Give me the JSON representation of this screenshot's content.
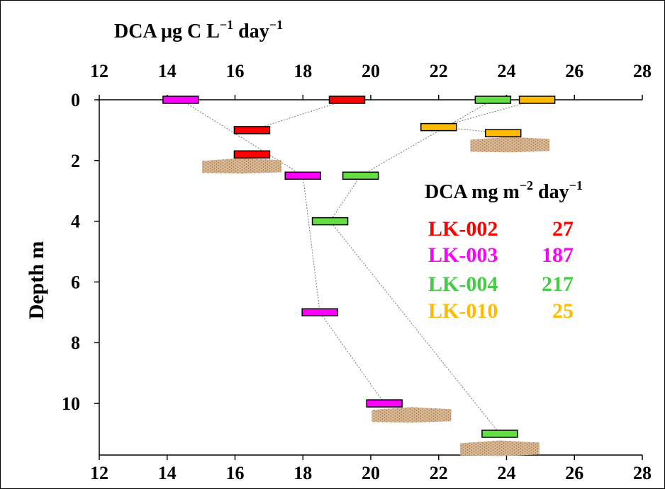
{
  "chart_data": {
    "type": "scatter",
    "x_axis_title_prefix": "DCA  μg C L",
    "x_axis_title_exp1": "−1",
    "x_axis_title_mid": " day",
    "x_axis_title_exp2": "−1",
    "y_axis_title": "Depth m",
    "x_ticks": [
      "12",
      "14",
      "16",
      "18",
      "20",
      "22",
      "24",
      "26",
      "28"
    ],
    "y_ticks": [
      "0",
      "2",
      "4",
      "6",
      "8",
      "10"
    ],
    "xlim": [
      12,
      28
    ],
    "ylim": [
      0,
      11.7
    ],
    "y_reversed": true,
    "legend": {
      "title_prefix": "DCA  mg m",
      "title_exp1": "−2",
      "title_mid": " day",
      "title_exp2": "−1",
      "placement": "right",
      "entries": [
        {
          "name": "LK-002",
          "value": "27"
        },
        {
          "name": "LK-003",
          "value": "187"
        },
        {
          "name": "LK-004",
          "value": "217"
        },
        {
          "name": "LK-010",
          "value": "25"
        }
      ]
    },
    "series": [
      {
        "name": "LK-002",
        "color": "#ff0000",
        "connected_points": [
          [
            19.3,
            0
          ],
          [
            16.5,
            1.0
          ]
        ],
        "points": [
          [
            19.3,
            0
          ],
          [
            16.5,
            1.0
          ],
          [
            16.5,
            1.8
          ]
        ]
      },
      {
        "name": "LK-003",
        "color": "#ff00ff",
        "connected_points": [
          [
            14.4,
            0
          ],
          [
            18.0,
            2.5
          ],
          [
            18.5,
            7.0
          ],
          [
            20.4,
            10.0
          ]
        ],
        "points": [
          [
            14.4,
            0
          ],
          [
            18.0,
            2.5
          ],
          [
            18.5,
            7.0
          ],
          [
            20.4,
            10.0
          ]
        ]
      },
      {
        "name": "LK-004",
        "color": "#66dd44",
        "connected_points": [
          [
            23.6,
            0
          ],
          [
            19.7,
            2.5
          ],
          [
            18.8,
            4.0
          ],
          [
            23.8,
            11.0
          ]
        ],
        "points": [
          [
            23.6,
            0
          ],
          [
            19.7,
            2.5
          ],
          [
            18.8,
            4.0
          ],
          [
            23.8,
            11.0
          ]
        ]
      },
      {
        "name": "LK-010",
        "color": "#ffbb00",
        "connected_points": [
          [
            24.9,
            0
          ],
          [
            22.0,
            0.9
          ],
          [
            23.9,
            1.1
          ]
        ],
        "points": [
          [
            24.9,
            0
          ],
          [
            22.0,
            0.9
          ],
          [
            23.9,
            1.1
          ]
        ]
      }
    ],
    "sediment_markers": [
      [
        16.2,
        2.2
      ],
      [
        24.1,
        1.5
      ],
      [
        21.2,
        10.4
      ],
      [
        23.8,
        11.5
      ]
    ],
    "colors": {
      "sediment": "#c8a07a"
    }
  }
}
